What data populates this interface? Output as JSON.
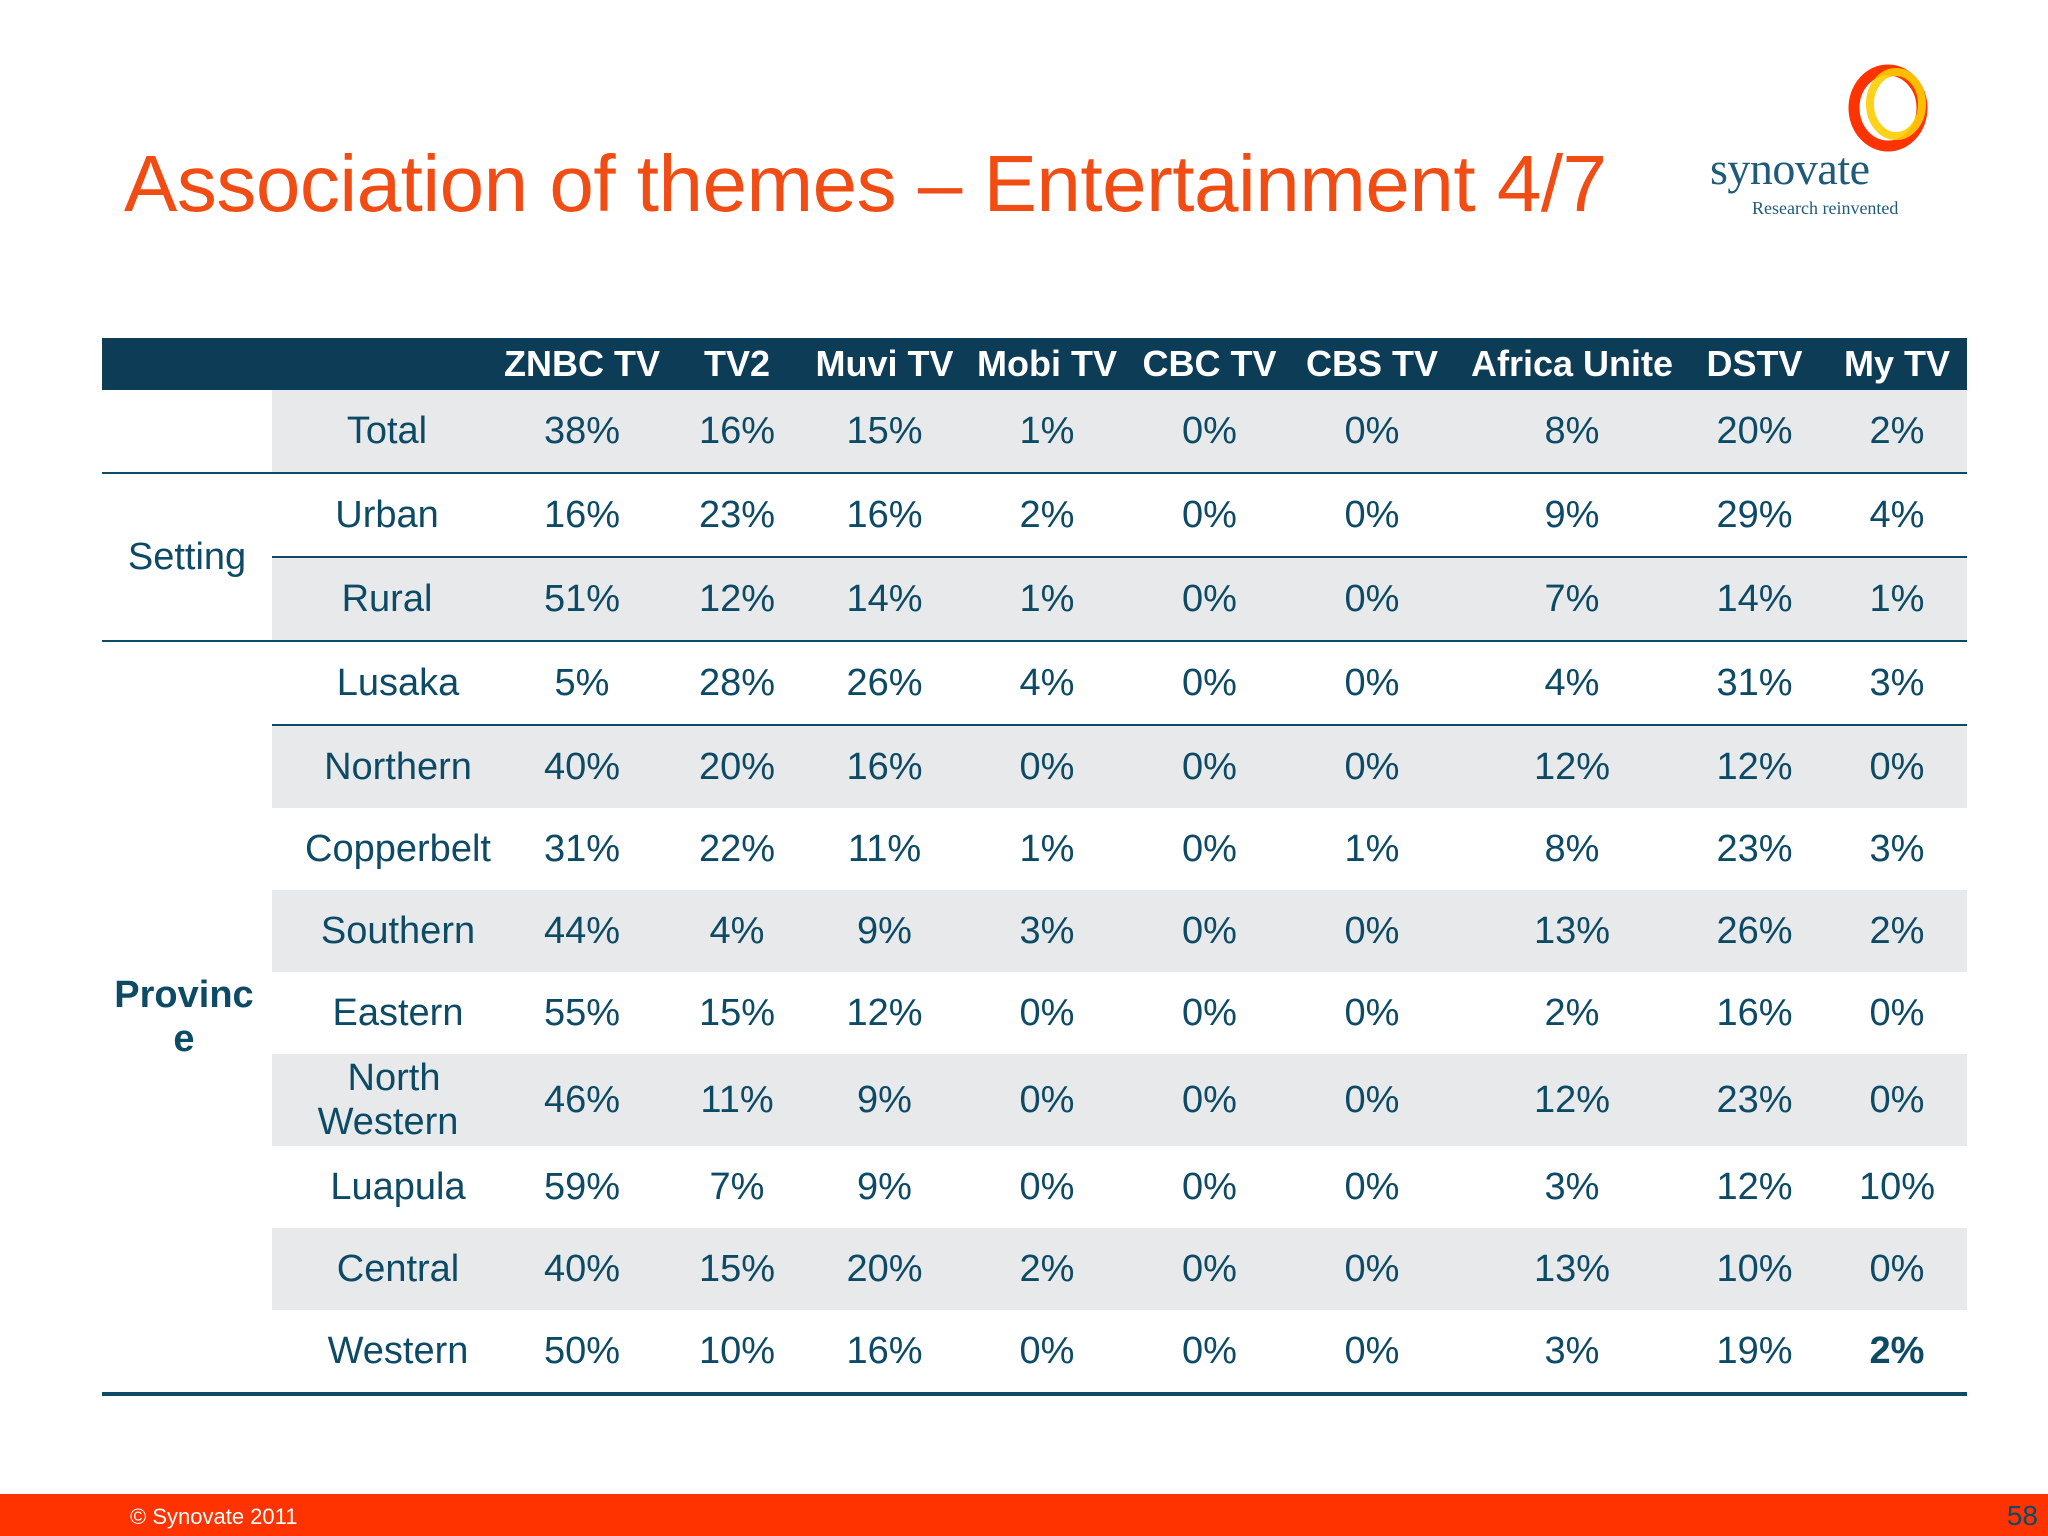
{
  "title": "Association of themes – Entertainment 4/7",
  "logo": {
    "word": "synovate",
    "tagline": "Research reinvented"
  },
  "table": {
    "columns": [
      "ZNBC TV",
      "TV2",
      "Muvi TV",
      "Mobi TV",
      "CBC TV",
      "CBS TV",
      "Africa Unite",
      "DSTV",
      "My TV"
    ],
    "total": {
      "label": "Total",
      "values": [
        "38%",
        "16%",
        "15%",
        "1%",
        "0%",
        "0%",
        "8%",
        "20%",
        "2%"
      ]
    },
    "setting": {
      "label": "Setting",
      "rows": [
        {
          "label": "Urban",
          "values": [
            "16%",
            "23%",
            "16%",
            "2%",
            "0%",
            "0%",
            "9%",
            "29%",
            "4%"
          ]
        },
        {
          "label": "Rural",
          "values": [
            "51%",
            "12%",
            "14%",
            "1%",
            "0%",
            "0%",
            "7%",
            "14%",
            "1%"
          ]
        }
      ]
    },
    "province": {
      "label": "Provinc e",
      "rows": [
        {
          "label": "Lusaka",
          "values": [
            "5%",
            "28%",
            "26%",
            "4%",
            "0%",
            "0%",
            "4%",
            "31%",
            "3%"
          ]
        },
        {
          "label": "Northern",
          "values": [
            "40%",
            "20%",
            "16%",
            "0%",
            "0%",
            "0%",
            "12%",
            "12%",
            "0%"
          ]
        },
        {
          "label": "Copperbelt",
          "values": [
            "31%",
            "22%",
            "11%",
            "1%",
            "0%",
            "1%",
            "8%",
            "23%",
            "3%"
          ]
        },
        {
          "label": "Southern",
          "values": [
            "44%",
            "4%",
            "9%",
            "3%",
            "0%",
            "0%",
            "13%",
            "26%",
            "2%"
          ]
        },
        {
          "label": "Eastern",
          "values": [
            "55%",
            "15%",
            "12%",
            "0%",
            "0%",
            "0%",
            "2%",
            "16%",
            "0%"
          ]
        },
        {
          "label": "North Western",
          "values": [
            "46%",
            "11%",
            "9%",
            "0%",
            "0%",
            "0%",
            "12%",
            "23%",
            "0%"
          ]
        },
        {
          "label": "Luapula",
          "values": [
            "59%",
            "7%",
            "9%",
            "0%",
            "0%",
            "0%",
            "3%",
            "12%",
            "10%"
          ]
        },
        {
          "label": "Central",
          "values": [
            "40%",
            "15%",
            "20%",
            "2%",
            "0%",
            "0%",
            "13%",
            "10%",
            "0%"
          ]
        },
        {
          "label": "Western",
          "values": [
            "50%",
            "10%",
            "16%",
            "0%",
            "0%",
            "0%",
            "3%",
            "19%",
            "2%"
          ]
        }
      ]
    }
  },
  "footer": {
    "copyright": "© Synovate 2011",
    "page": "58"
  },
  "colors": {
    "title": "#f04c14",
    "navy": "#0d3d56",
    "footer": "#ff3300",
    "zero": "#d6d8dc",
    "shade": "#e8e9eb"
  }
}
